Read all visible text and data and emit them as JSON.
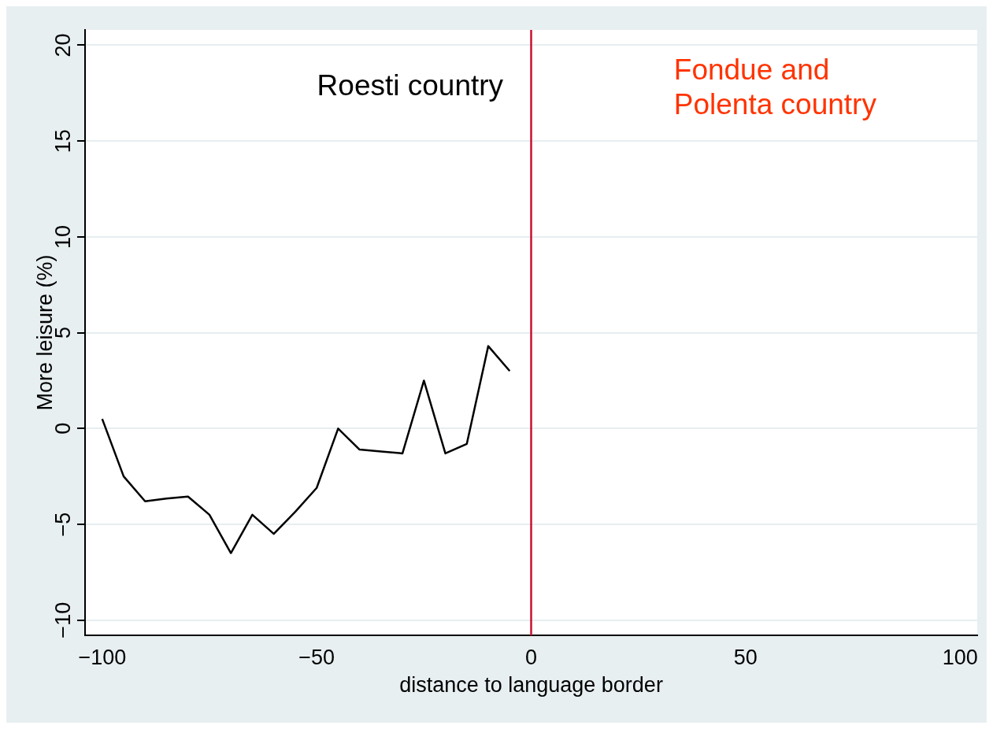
{
  "chart_data": {
    "type": "line",
    "xlabel": "distance to language border",
    "ylabel": "More leisure (%)",
    "x": [
      -100,
      -95,
      -90,
      -85,
      -80,
      -75,
      -70,
      -65,
      -60,
      -55,
      -50,
      -45,
      -40,
      -35,
      -30,
      -25,
      -20,
      -15,
      -10,
      -5
    ],
    "series": [
      {
        "color": "#000000",
        "values": [
          0.5,
          -2.5,
          -3.8,
          -3.65,
          -3.55,
          -4.5,
          -6.5,
          -4.5,
          -5.5,
          -4.35,
          -3.1,
          0,
          -1.1,
          -1.2,
          -1.3,
          2.5,
          -1.3,
          -0.8,
          4.3,
          3.0
        ]
      }
    ],
    "xlim": [
      -104,
      104
    ],
    "xticks": [
      -100,
      -50,
      0,
      50,
      100
    ],
    "ylim": [
      -10.8,
      20.8
    ],
    "yticks": [
      -10,
      -5,
      0,
      5,
      10,
      15,
      20
    ],
    "grid": "y",
    "legend": false,
    "marker": "none",
    "line_style": "solid",
    "ref_lines": [
      {
        "axis": "x",
        "value": 0,
        "color": "#c8102e"
      }
    ],
    "annotations": [
      "Roesti country",
      "Fondue and\nPolenta country"
    ]
  }
}
